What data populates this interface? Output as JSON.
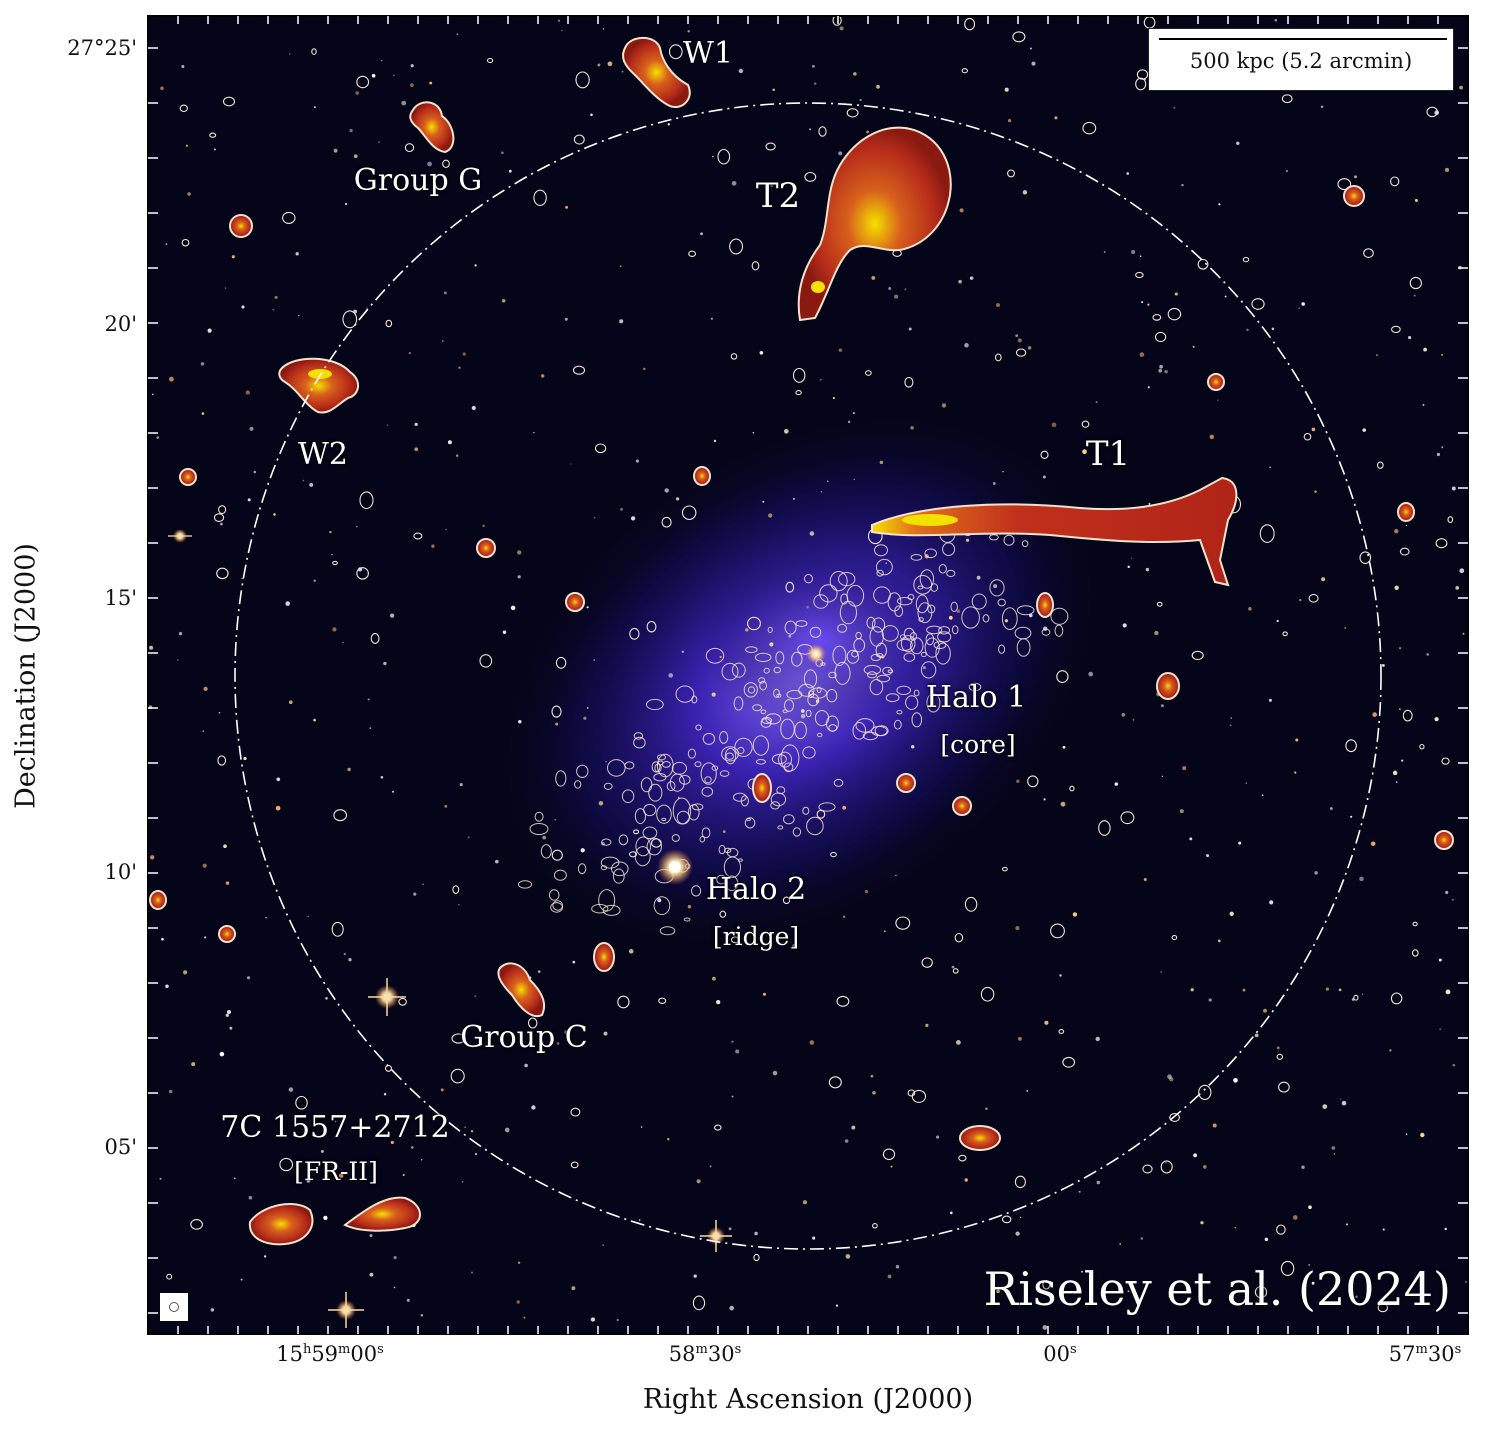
{
  "figure": {
    "x_axis_title": "Right Ascension (J2000)",
    "y_axis_title": "Declination (J2000)",
    "x_tick_labels": [
      {
        "main": "15",
        "sup1": "h",
        "mid": "59",
        "sup2": "m",
        "end": "00",
        "sup3": "s"
      },
      {
        "main": "",
        "sup1": "",
        "mid": "58",
        "sup2": "m",
        "end": "30",
        "sup3": "s"
      },
      {
        "main": "",
        "sup1": "",
        "mid": "",
        "sup2": "",
        "end": "00",
        "sup3": "s"
      },
      {
        "main": "",
        "sup1": "",
        "mid": "57",
        "sup2": "m",
        "end": "30",
        "sup3": "s"
      }
    ],
    "y_tick_labels": [
      "27°25'",
      "20'",
      "15'",
      "10'",
      "05'"
    ],
    "scalebar_label": "500 kpc (5.2 arcmin)",
    "credit": "Riseley et al. (2024)"
  },
  "sources": {
    "w1": "W1",
    "group_g": "Group G",
    "t2": "T2",
    "w2": "W2",
    "t1": "T1",
    "halo1": "Halo 1",
    "halo1_sub": "[core]",
    "halo2": "Halo 2",
    "halo2_sub": "[ridge]",
    "group_c": "Group C",
    "fr2": "7C 1557+2712",
    "fr2_sub": "[FR-II]"
  },
  "colors": {
    "background_sky": "#05051a",
    "xray_emission": "#4b2cff",
    "radio_emission": "#c0301c",
    "radio_peak": "#f4e000",
    "contour": "#f3e3cf",
    "star": "#f7e6b0"
  }
}
